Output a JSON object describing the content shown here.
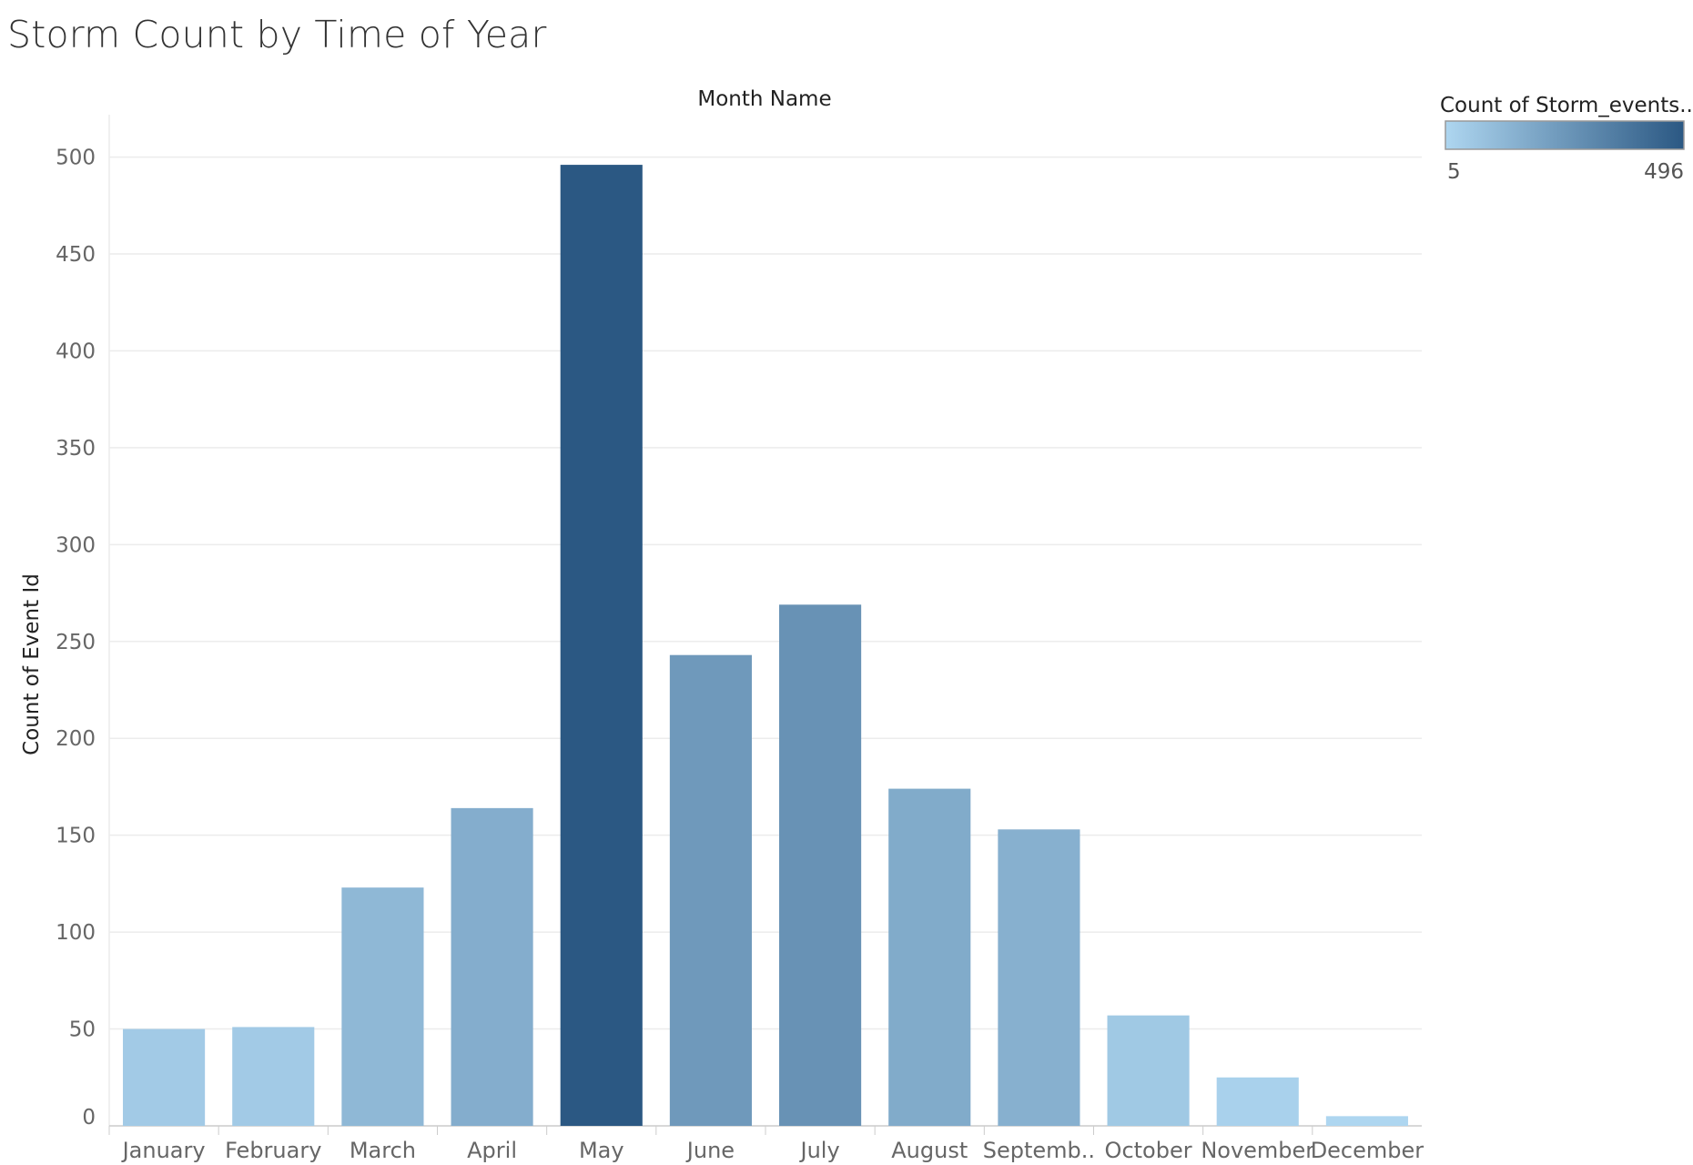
{
  "title": "Storm Count by Time of Year",
  "colors": {
    "low": "#aed6f0",
    "high": "#2b5883",
    "grid": "#ececec",
    "axis": "#cccccc"
  },
  "legend": {
    "title": "Count of Storm_events..",
    "min_label": "5",
    "max_label": "496",
    "min": 5,
    "max": 496,
    "placement": "top-right"
  },
  "chart_data": {
    "type": "bar",
    "title": "Storm Count by Time of Year",
    "column_header": "Month Name",
    "xlabel": "",
    "ylabel": "Count of Event Id",
    "ylim": [
      0,
      520
    ],
    "yticks": [
      0,
      50,
      100,
      150,
      200,
      250,
      300,
      350,
      400,
      450,
      500
    ],
    "grid": true,
    "categories": [
      "January",
      "February",
      "March",
      "April",
      "May",
      "June",
      "July",
      "August",
      "Septemb..",
      "October",
      "November",
      "December"
    ],
    "values": [
      50,
      51,
      123,
      164,
      496,
      243,
      269,
      174,
      153,
      57,
      25,
      5
    ]
  }
}
